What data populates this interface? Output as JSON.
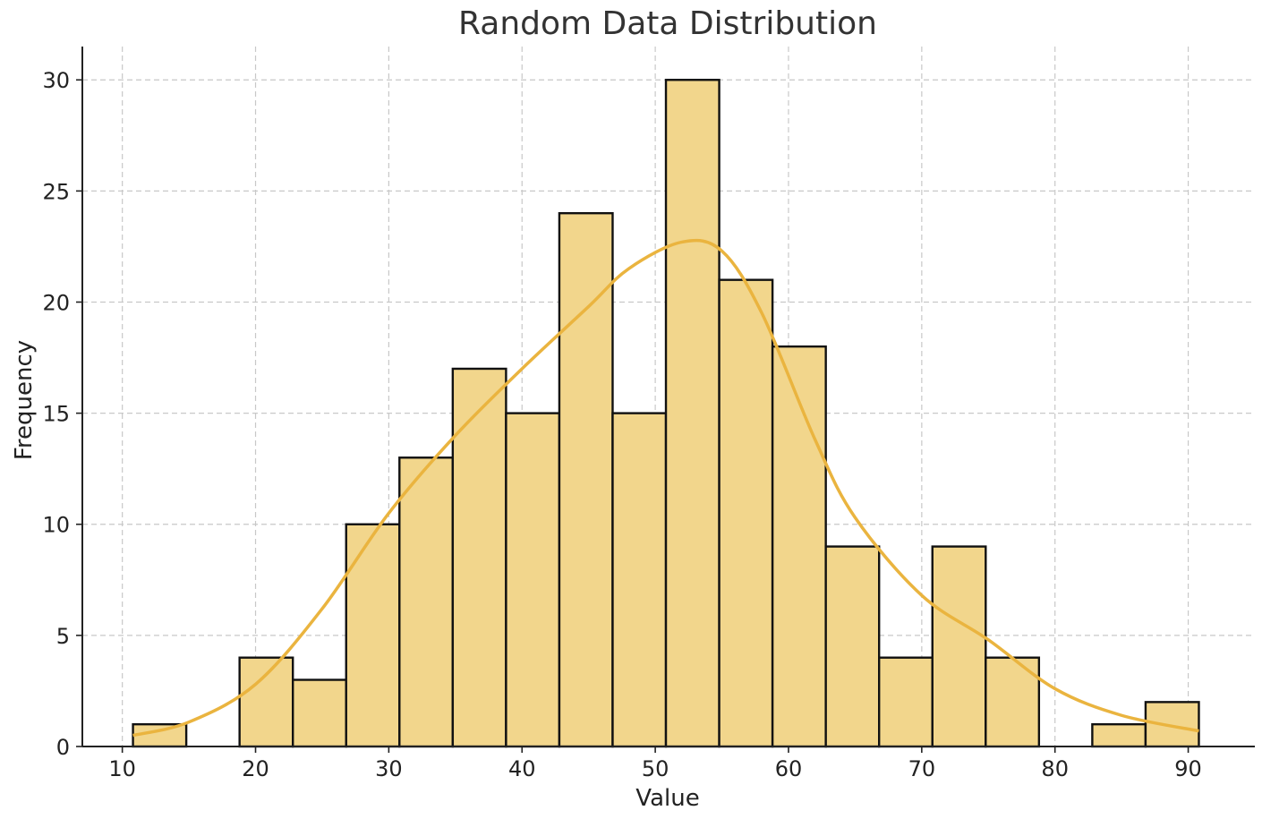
{
  "chart_data": {
    "type": "bar",
    "title": "Random Data Distribution",
    "xlabel": "Value",
    "ylabel": "Frequency",
    "xlim": [
      7,
      95
    ],
    "ylim": [
      0,
      31.5
    ],
    "x_ticks": [
      10,
      20,
      30,
      40,
      50,
      60,
      70,
      80,
      90
    ],
    "y_ticks": [
      0,
      5,
      10,
      15,
      20,
      25,
      30
    ],
    "grid": true,
    "colors": {
      "bar_fill": "#F2D68C",
      "bar_edge": "#111111",
      "kde": "#EAB43F",
      "grid": "#c8c8c8",
      "axis": "#222222"
    },
    "bins": [
      {
        "x0": 10.8,
        "x1": 14.8,
        "count": 1
      },
      {
        "x0": 14.8,
        "x1": 18.8,
        "count": 0
      },
      {
        "x0": 18.8,
        "x1": 22.8,
        "count": 4
      },
      {
        "x0": 22.8,
        "x1": 26.8,
        "count": 3
      },
      {
        "x0": 26.8,
        "x1": 30.8,
        "count": 10
      },
      {
        "x0": 30.8,
        "x1": 34.8,
        "count": 13
      },
      {
        "x0": 34.8,
        "x1": 38.8,
        "count": 17
      },
      {
        "x0": 38.8,
        "x1": 42.8,
        "count": 15
      },
      {
        "x0": 42.8,
        "x1": 46.8,
        "count": 24
      },
      {
        "x0": 46.8,
        "x1": 50.8,
        "count": 15
      },
      {
        "x0": 50.8,
        "x1": 54.8,
        "count": 30
      },
      {
        "x0": 54.8,
        "x1": 58.8,
        "count": 21
      },
      {
        "x0": 58.8,
        "x1": 62.8,
        "count": 18
      },
      {
        "x0": 62.8,
        "x1": 66.8,
        "count": 9
      },
      {
        "x0": 66.8,
        "x1": 70.8,
        "count": 4
      },
      {
        "x0": 70.8,
        "x1": 74.8,
        "count": 9
      },
      {
        "x0": 74.8,
        "x1": 78.8,
        "count": 4
      },
      {
        "x0": 78.8,
        "x1": 82.8,
        "count": 0
      },
      {
        "x0": 82.8,
        "x1": 86.8,
        "count": 1
      },
      {
        "x0": 86.8,
        "x1": 90.8,
        "count": 2
      }
    ],
    "kde": {
      "x": [
        10.8,
        15,
        20,
        25,
        30,
        35,
        40,
        45,
        48,
        52,
        55,
        58,
        62,
        65,
        70,
        75,
        80,
        85,
        90.8
      ],
      "y": [
        0.5,
        1.1,
        2.8,
        6.2,
        10.5,
        14.0,
        17.0,
        19.8,
        21.5,
        22.7,
        22.3,
        19.5,
        13.8,
        10.3,
        6.8,
        4.8,
        2.6,
        1.4,
        0.7
      ]
    }
  }
}
